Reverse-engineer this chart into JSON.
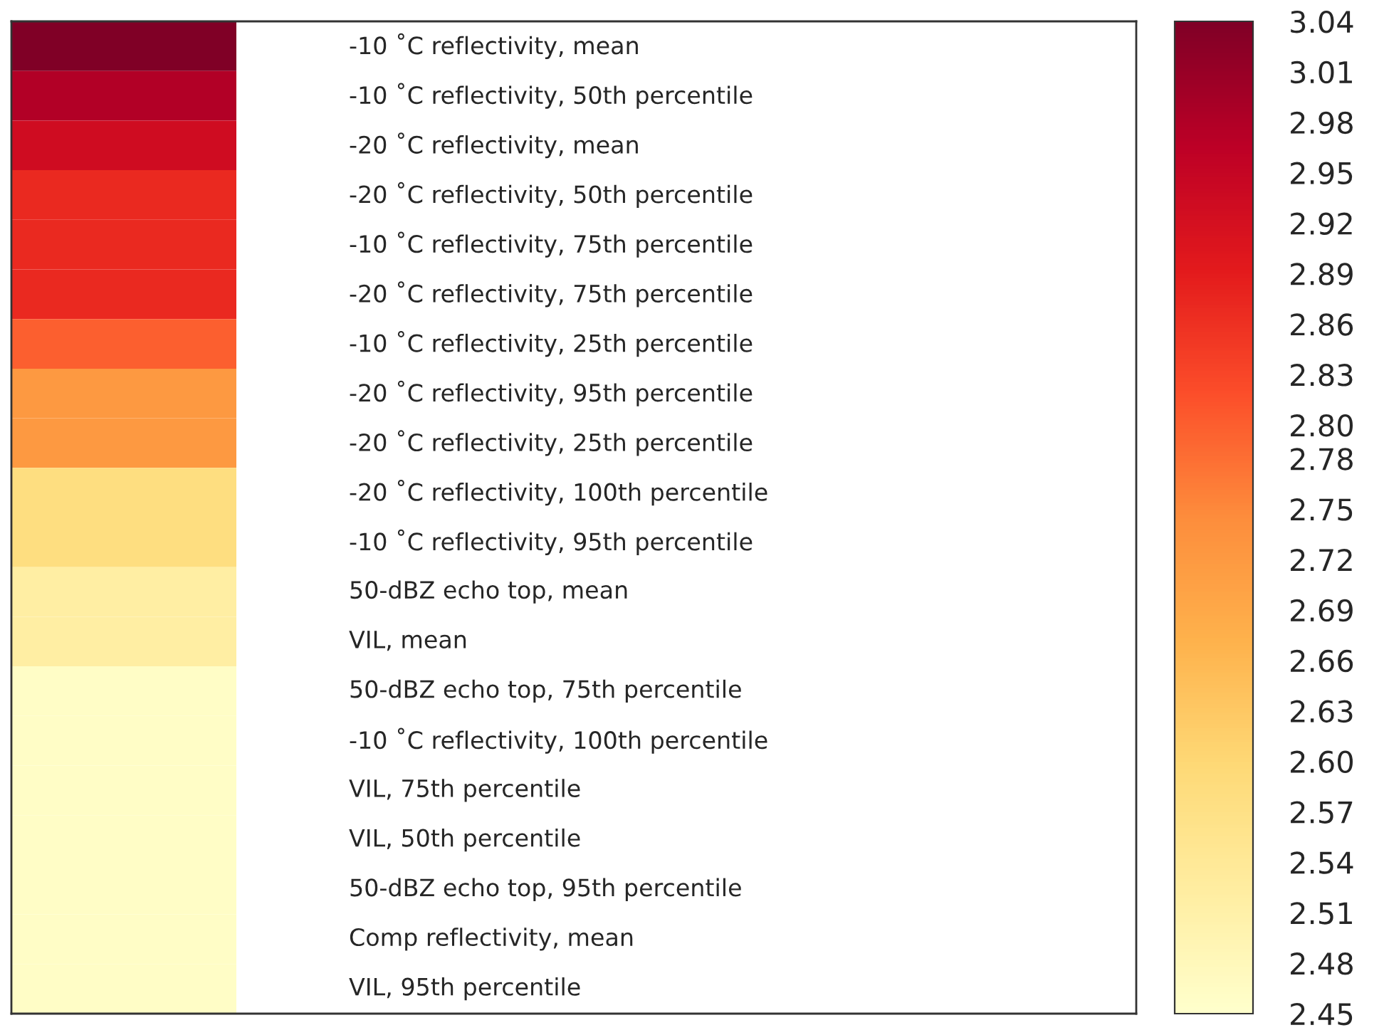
{
  "chart_data": {
    "type": "heatmap",
    "categories": [
      null
    ],
    "y_categories": [
      "-10 ˚C reflectivity, mean",
      "-10 ˚C reflectivity, 50th percentile",
      "-20 ˚C reflectivity, mean",
      "-20 ˚C reflectivity, 50th percentile",
      "-10 ˚C reflectivity, 75th percentile",
      "-20 ˚C reflectivity, 75th percentile",
      "-10 ˚C reflectivity, 25th percentile",
      "-20 ˚C reflectivity, 95th percentile",
      "-20 ˚C reflectivity, 25th percentile",
      "-20 ˚C reflectivity, 100th percentile",
      "-10 ˚C reflectivity, 95th percentile",
      "50-dBZ echo top, mean",
      "VIL, mean",
      "50-dBZ echo top, 75th percentile",
      "-10 ˚C reflectivity, 100th percentile",
      "VIL, 75th percentile",
      "VIL, 50th percentile",
      "50-dBZ echo top, 95th percentile",
      "Comp reflectivity, mean",
      "VIL, 95th percentile"
    ],
    "cells": [
      [
        3.04
      ],
      [
        2.98
      ],
      [
        2.93
      ],
      [
        2.87
      ],
      [
        2.87
      ],
      [
        2.87
      ],
      [
        2.8
      ],
      [
        2.72
      ],
      [
        2.72
      ],
      [
        2.58
      ],
      [
        2.58
      ],
      [
        2.52
      ],
      [
        2.52
      ],
      [
        2.46
      ],
      [
        2.46
      ],
      [
        2.46
      ],
      [
        2.46
      ],
      [
        2.46
      ],
      [
        2.46
      ],
      [
        2.46
      ]
    ],
    "clim": [
      2.45,
      3.04
    ],
    "cticks": [
      {
        "value": 2.45,
        "label": "2.45"
      },
      {
        "value": 2.48,
        "label": "2.48"
      },
      {
        "value": 2.51,
        "label": "2.51"
      },
      {
        "value": 2.54,
        "label": "2.54"
      },
      {
        "value": 2.57,
        "label": "2.57"
      },
      {
        "value": 2.6,
        "label": "2.60"
      },
      {
        "value": 2.63,
        "label": "2.63"
      },
      {
        "value": 2.66,
        "label": "2.66"
      },
      {
        "value": 2.69,
        "label": "2.69"
      },
      {
        "value": 2.72,
        "label": "2.72"
      },
      {
        "value": 2.75,
        "label": "2.75"
      },
      {
        "value": 2.78,
        "label": "2.78"
      },
      {
        "value": 2.8,
        "label": "2.80"
      },
      {
        "value": 2.83,
        "label": "2.83"
      },
      {
        "value": 2.86,
        "label": "2.86"
      },
      {
        "value": 2.89,
        "label": "2.89"
      },
      {
        "value": 2.92,
        "label": "2.92"
      },
      {
        "value": 2.95,
        "label": "2.95"
      },
      {
        "value": 2.98,
        "label": "2.98"
      },
      {
        "value": 3.01,
        "label": "3.01"
      },
      {
        "value": 3.04,
        "label": "3.04"
      }
    ]
  }
}
